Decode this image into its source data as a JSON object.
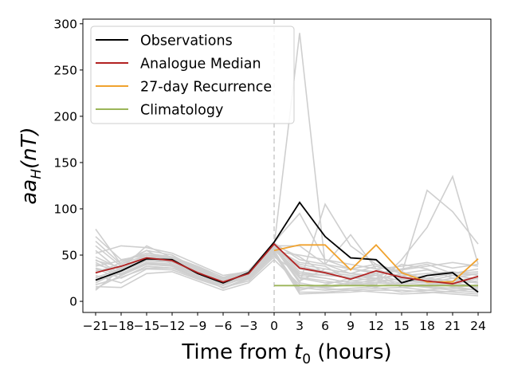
{
  "chart_data": {
    "type": "line",
    "title": "",
    "xlabel": "Time from t0 (hours)",
    "xlabel_parts": {
      "prefix": "Time from ",
      "var": "t",
      "sub": "0",
      "suffix": " (hours)"
    },
    "ylabel": "aa_H(nT)",
    "ylabel_parts": {
      "var": "aa",
      "sub": "H",
      "suffix": "(nT)"
    },
    "xlim": [
      -22.5,
      25.5
    ],
    "ylim": [
      -12,
      305
    ],
    "x": [
      -21,
      -18,
      -15,
      -12,
      -9,
      -6,
      -3,
      0,
      3,
      6,
      9,
      12,
      15,
      18,
      21,
      24
    ],
    "xticks": [
      "−21",
      "−18",
      "−15",
      "−12",
      "−9",
      "−6",
      "−3",
      "0",
      "3",
      "6",
      "9",
      "12",
      "15",
      "18",
      "21",
      "24"
    ],
    "yticks": [
      0,
      50,
      100,
      150,
      200,
      250,
      300
    ],
    "grid": false,
    "t0_marker": {
      "x": 0,
      "style": "dashed",
      "color": "#cccccc"
    },
    "legend_position": "upper left",
    "series": [
      {
        "name": "Observations",
        "color": "#000000",
        "values": [
          23,
          33,
          46,
          45,
          30,
          20,
          31,
          64,
          107,
          70,
          47,
          45,
          20,
          28,
          31,
          10
        ]
      },
      {
        "name": "Analogue Median",
        "color": "#b22222",
        "values": [
          31,
          38,
          47,
          44,
          31,
          21,
          30,
          62,
          36,
          31,
          24,
          33,
          26,
          22,
          19,
          27
        ]
      },
      {
        "name": "27-day Recurrence",
        "color": "#f0a22e",
        "x": [
          0,
          3,
          6,
          9,
          12,
          15,
          18,
          21,
          24
        ],
        "values": [
          55,
          61,
          61,
          34,
          61,
          31,
          21,
          21,
          46
        ]
      },
      {
        "name": "Climatology",
        "color": "#9bb558",
        "x": [
          0,
          24
        ],
        "values": [
          17,
          17
        ]
      }
    ],
    "analogues": {
      "color": "#cfcfcf",
      "note": "approx. 25 grey analogue traces (values estimated)",
      "values": [
        [
          78,
          40,
          55,
          50,
          35,
          22,
          30,
          60,
          290,
          40,
          30,
          28,
          22,
          20,
          25,
          20
        ],
        [
          70,
          45,
          50,
          45,
          33,
          25,
          33,
          62,
          20,
          105,
          60,
          40,
          30,
          120,
          97,
          62
        ],
        [
          60,
          38,
          48,
          46,
          30,
          20,
          28,
          58,
          30,
          25,
          20,
          18,
          45,
          80,
          135,
          40
        ],
        [
          52,
          60,
          58,
          52,
          40,
          28,
          32,
          64,
          95,
          45,
          35,
          30,
          15,
          18,
          20,
          22
        ],
        [
          48,
          35,
          60,
          47,
          37,
          24,
          29,
          60,
          60,
          40,
          72,
          35,
          25,
          22,
          28,
          30
        ],
        [
          45,
          30,
          42,
          40,
          28,
          18,
          26,
          55,
          10,
          10,
          12,
          14,
          15,
          12,
          10,
          8
        ],
        [
          42,
          28,
          40,
          38,
          26,
          15,
          25,
          52,
          8,
          9,
          10,
          12,
          12,
          10,
          8,
          6
        ],
        [
          40,
          32,
          44,
          42,
          32,
          22,
          30,
          58,
          20,
          15,
          18,
          20,
          18,
          15,
          12,
          10
        ],
        [
          38,
          44,
          52,
          48,
          34,
          25,
          31,
          60,
          35,
          30,
          25,
          28,
          22,
          20,
          18,
          15
        ],
        [
          35,
          25,
          38,
          36,
          25,
          17,
          27,
          55,
          40,
          35,
          30,
          38,
          30,
          25,
          30,
          35
        ],
        [
          33,
          38,
          46,
          44,
          30,
          20,
          28,
          57,
          25,
          20,
          22,
          25,
          28,
          30,
          32,
          28
        ],
        [
          30,
          42,
          55,
          40,
          28,
          14,
          24,
          50,
          15,
          12,
          14,
          16,
          20,
          25,
          22,
          20
        ],
        [
          28,
          20,
          35,
          34,
          24,
          15,
          22,
          48,
          30,
          28,
          26,
          22,
          18,
          16,
          14,
          12
        ],
        [
          25,
          36,
          50,
          48,
          38,
          26,
          33,
          63,
          45,
          40,
          35,
          32,
          28,
          20,
          18,
          25
        ],
        [
          22,
          30,
          40,
          38,
          26,
          19,
          25,
          52,
          12,
          18,
          25,
          30,
          35,
          40,
          30,
          35
        ],
        [
          20,
          33,
          45,
          42,
          30,
          21,
          29,
          56,
          28,
          25,
          20,
          15,
          10,
          12,
          15,
          18
        ],
        [
          18,
          26,
          36,
          36,
          27,
          18,
          26,
          54,
          50,
          45,
          40,
          35,
          38,
          42,
          36,
          40
        ],
        [
          16,
          15,
          30,
          32,
          22,
          12,
          20,
          45,
          18,
          14,
          12,
          10,
          8,
          9,
          11,
          14
        ],
        [
          14,
          28,
          42,
          40,
          30,
          22,
          30,
          58,
          22,
          35,
          30,
          25,
          40,
          35,
          25,
          30
        ],
        [
          12,
          35,
          48,
          46,
          36,
          24,
          32,
          60,
          38,
          32,
          28,
          24,
          20,
          18,
          22,
          26
        ],
        [
          55,
          32,
          44,
          42,
          31,
          20,
          28,
          57,
          42,
          38,
          22,
          20,
          25,
          28,
          30,
          32
        ],
        [
          65,
          40,
          50,
          47,
          34,
          23,
          31,
          61,
          32,
          28,
          35,
          40,
          32,
          24,
          20,
          16
        ],
        [
          44,
          37,
          47,
          44,
          32,
          22,
          30,
          59,
          26,
          22,
          18,
          24,
          30,
          34,
          28,
          24
        ],
        [
          36,
          29,
          41,
          39,
          28,
          19,
          27,
          54,
          14,
          16,
          20,
          22,
          24,
          20,
          16,
          12
        ],
        [
          26,
          34,
          46,
          43,
          33,
          23,
          31,
          61,
          48,
          30,
          26,
          28,
          34,
          38,
          42,
          38
        ]
      ]
    }
  }
}
